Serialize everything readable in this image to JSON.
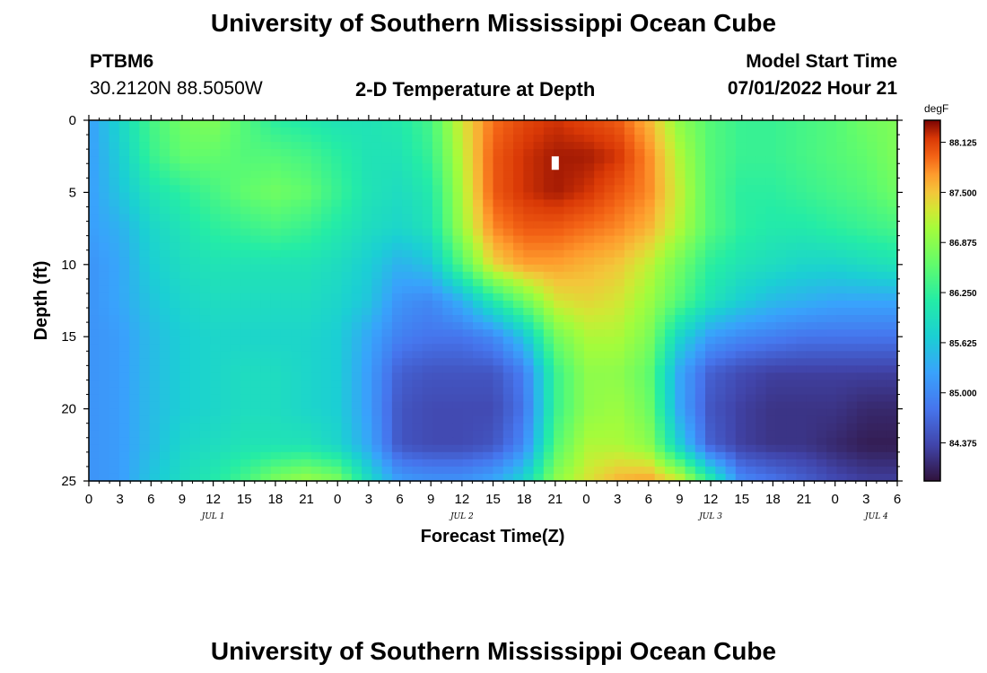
{
  "header": {
    "title": "University of Southern Mississippi Ocean Cube",
    "station": "PTBM6",
    "coords": "30.2120N  88.5050W",
    "product": "2-D Temperature at Depth",
    "start_label": "Model Start Time",
    "start_value": "07/01/2022 Hour 21"
  },
  "footer": {
    "title": "University of Southern Mississippi Ocean Cube"
  },
  "chart_data": {
    "type": "heatmap",
    "xlabel": "Forecast Time(Z)",
    "ylabel": "Depth (ft)",
    "ylim": [
      0,
      25
    ],
    "yticks": [
      0,
      5,
      10,
      15,
      20,
      25
    ],
    "xlim": [
      0,
      78
    ],
    "xticks": [
      {
        "x": 0,
        "label": "0"
      },
      {
        "x": 3,
        "label": "3"
      },
      {
        "x": 6,
        "label": "6"
      },
      {
        "x": 9,
        "label": "9"
      },
      {
        "x": 12,
        "label": "12"
      },
      {
        "x": 15,
        "label": "15"
      },
      {
        "x": 18,
        "label": "18"
      },
      {
        "x": 21,
        "label": "21"
      },
      {
        "x": 24,
        "label": "0"
      },
      {
        "x": 27,
        "label": "3"
      },
      {
        "x": 30,
        "label": "6"
      },
      {
        "x": 33,
        "label": "9"
      },
      {
        "x": 36,
        "label": "12"
      },
      {
        "x": 39,
        "label": "15"
      },
      {
        "x": 42,
        "label": "18"
      },
      {
        "x": 45,
        "label": "21"
      },
      {
        "x": 48,
        "label": "0"
      },
      {
        "x": 51,
        "label": "3"
      },
      {
        "x": 54,
        "label": "6"
      },
      {
        "x": 57,
        "label": "9"
      },
      {
        "x": 60,
        "label": "12"
      },
      {
        "x": 63,
        "label": "15"
      },
      {
        "x": 66,
        "label": "18"
      },
      {
        "x": 69,
        "label": "21"
      },
      {
        "x": 72,
        "label": "0"
      },
      {
        "x": 75,
        "label": "3"
      },
      {
        "x": 78,
        "label": "6"
      }
    ],
    "day_labels": [
      {
        "x": 12,
        "label": "JUL 1"
      },
      {
        "x": 36,
        "label": "JUL 2"
      },
      {
        "x": 60,
        "label": "JUL 3"
      },
      {
        "x": 76,
        "label": "JUL 4"
      }
    ],
    "colorbar": {
      "unit": "degF",
      "min": 83.9,
      "max": 88.4,
      "ticks": [
        "88.125",
        "87.500",
        "86.875",
        "86.250",
        "85.625",
        "85.000",
        "84.375"
      ]
    },
    "marker": {
      "x": 45,
      "y": 3
    },
    "depths": [
      0,
      2.5,
      5,
      7.5,
      10,
      12.5,
      15,
      17.5,
      20,
      22.5,
      25
    ],
    "times": [
      0,
      3,
      6,
      9,
      12,
      15,
      18,
      21,
      24,
      27,
      30,
      33,
      36,
      39,
      42,
      45,
      48,
      51,
      54,
      57,
      60,
      63,
      66,
      69,
      72,
      75,
      78
    ],
    "values": [
      [
        85.2,
        85.8,
        86.4,
        86.7,
        86.8,
        86.5,
        86.2,
        86.1,
        86.0,
        86.0,
        86.1,
        86.4,
        87.3,
        87.9,
        88.1,
        88.2,
        88.1,
        88.0,
        87.6,
        86.9,
        86.5,
        86.3,
        86.3,
        86.4,
        86.5,
        86.7,
        86.8
      ],
      [
        85.2,
        85.7,
        86.3,
        86.6,
        86.6,
        86.5,
        86.5,
        86.4,
        86.2,
        86.0,
        86.0,
        86.3,
        87.2,
        88.0,
        88.2,
        88.3,
        88.3,
        88.2,
        87.8,
        87.1,
        86.5,
        86.3,
        86.3,
        86.4,
        86.5,
        86.6,
        86.8
      ],
      [
        85.2,
        85.6,
        86.0,
        86.2,
        86.4,
        86.6,
        86.7,
        86.6,
        86.3,
        86.0,
        85.9,
        86.1,
        87.1,
        88.0,
        88.2,
        88.3,
        88.2,
        88.0,
        87.8,
        87.2,
        86.5,
        86.2,
        86.2,
        86.3,
        86.4,
        86.5,
        86.7
      ],
      [
        85.2,
        85.4,
        85.8,
        86.0,
        86.2,
        86.3,
        86.4,
        86.3,
        86.1,
        85.9,
        85.8,
        86.0,
        87.0,
        87.8,
        88.0,
        88.0,
        87.9,
        87.8,
        87.6,
        87.1,
        86.5,
        86.2,
        86.1,
        86.1,
        86.2,
        86.3,
        86.4
      ],
      [
        85.1,
        85.3,
        85.7,
        85.9,
        86.0,
        86.0,
        86.0,
        86.0,
        85.9,
        85.7,
        85.4,
        85.6,
        86.5,
        87.4,
        87.7,
        87.7,
        87.6,
        87.5,
        87.2,
        86.7,
        86.2,
        86.0,
        85.9,
        85.8,
        85.8,
        85.9,
        86.0
      ],
      [
        85.1,
        85.3,
        85.6,
        85.8,
        85.9,
        85.9,
        85.9,
        85.9,
        85.8,
        85.6,
        85.1,
        85.0,
        85.4,
        86.1,
        86.7,
        87.3,
        87.4,
        87.3,
        87.0,
        86.5,
        86.0,
        85.7,
        85.5,
        85.4,
        85.3,
        85.3,
        85.3
      ],
      [
        85.1,
        85.2,
        85.5,
        85.7,
        85.8,
        85.8,
        85.8,
        85.8,
        85.7,
        85.3,
        84.9,
        84.8,
        84.8,
        85.0,
        85.6,
        86.7,
        87.1,
        87.1,
        86.8,
        85.8,
        85.2,
        85.0,
        84.9,
        84.8,
        84.8,
        84.8,
        84.8
      ],
      [
        85.1,
        85.2,
        85.5,
        85.7,
        85.8,
        85.9,
        85.9,
        85.8,
        85.7,
        85.2,
        84.6,
        84.5,
        84.5,
        84.5,
        84.9,
        86.3,
        86.9,
        86.9,
        86.6,
        85.3,
        84.6,
        84.4,
        84.3,
        84.3,
        84.3,
        84.3,
        84.3
      ],
      [
        85.1,
        85.2,
        85.5,
        85.7,
        85.8,
        85.9,
        85.9,
        85.8,
        85.7,
        85.2,
        84.5,
        84.4,
        84.4,
        84.4,
        84.8,
        86.3,
        86.9,
        87.0,
        86.7,
        85.3,
        84.5,
        84.3,
        84.2,
        84.2,
        84.2,
        84.1,
        84.1
      ],
      [
        85.1,
        85.2,
        85.5,
        85.8,
        85.9,
        86.0,
        86.0,
        86.0,
        85.8,
        85.3,
        84.5,
        84.4,
        84.4,
        84.5,
        85.0,
        86.5,
        87.1,
        87.1,
        86.9,
        85.7,
        84.6,
        84.3,
        84.2,
        84.2,
        84.1,
        84.0,
        84.0
      ],
      [
        85.1,
        85.2,
        85.6,
        85.9,
        86.1,
        86.4,
        86.8,
        87.0,
        86.8,
        85.9,
        85.2,
        85.1,
        85.1,
        85.3,
        85.8,
        86.9,
        87.3,
        87.6,
        87.7,
        87.3,
        86.2,
        85.0,
        84.8,
        84.6,
        84.4,
        84.3,
        84.3
      ]
    ]
  }
}
